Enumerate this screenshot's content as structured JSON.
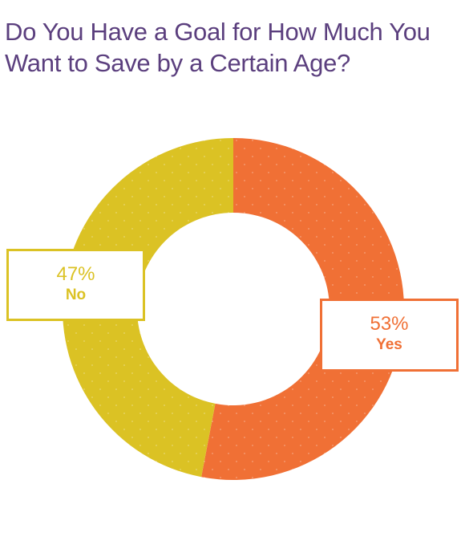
{
  "title": "Do You Have a Goal for How Much You Want to Save by a Certain Age?",
  "colors": {
    "title": "#5b3f7e",
    "yes": "#f07035",
    "no": "#dbc224"
  },
  "labels": {
    "no": {
      "pct": "47%",
      "cat": "No"
    },
    "yes": {
      "pct": "53%",
      "cat": "Yes"
    }
  },
  "chart_data": {
    "type": "pie",
    "title": "Do You Have a Goal for How Much You Want to Save by a Certain Age?",
    "donut": true,
    "categories": [
      "Yes",
      "No"
    ],
    "values": [
      53,
      47
    ],
    "unit": "%",
    "colors": [
      "#f07035",
      "#dbc224"
    ]
  }
}
